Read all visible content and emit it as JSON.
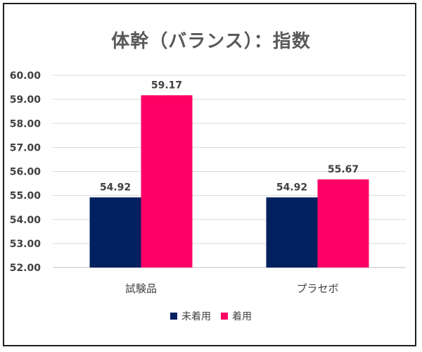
{
  "chart_data": {
    "type": "bar",
    "title": "体幹（バランス）：指数",
    "categories": [
      "試験品",
      "プラセボ"
    ],
    "series": [
      {
        "name": "未着用",
        "color": "#002060",
        "values": [
          54.92,
          54.92
        ]
      },
      {
        "name": "着用",
        "color": "#ff0066",
        "values": [
          59.17,
          55.67
        ]
      }
    ],
    "data_labels": [
      [
        "54.92",
        "54.92"
      ],
      [
        "59.17",
        "55.67"
      ]
    ],
    "ylim": [
      52.0,
      60.0
    ],
    "yticks": [
      "52.00",
      "53.00",
      "54.00",
      "55.00",
      "56.00",
      "57.00",
      "58.00",
      "59.00",
      "60.00"
    ],
    "grid": true,
    "legend_position": "bottom",
    "xlabel": "",
    "ylabel": ""
  }
}
